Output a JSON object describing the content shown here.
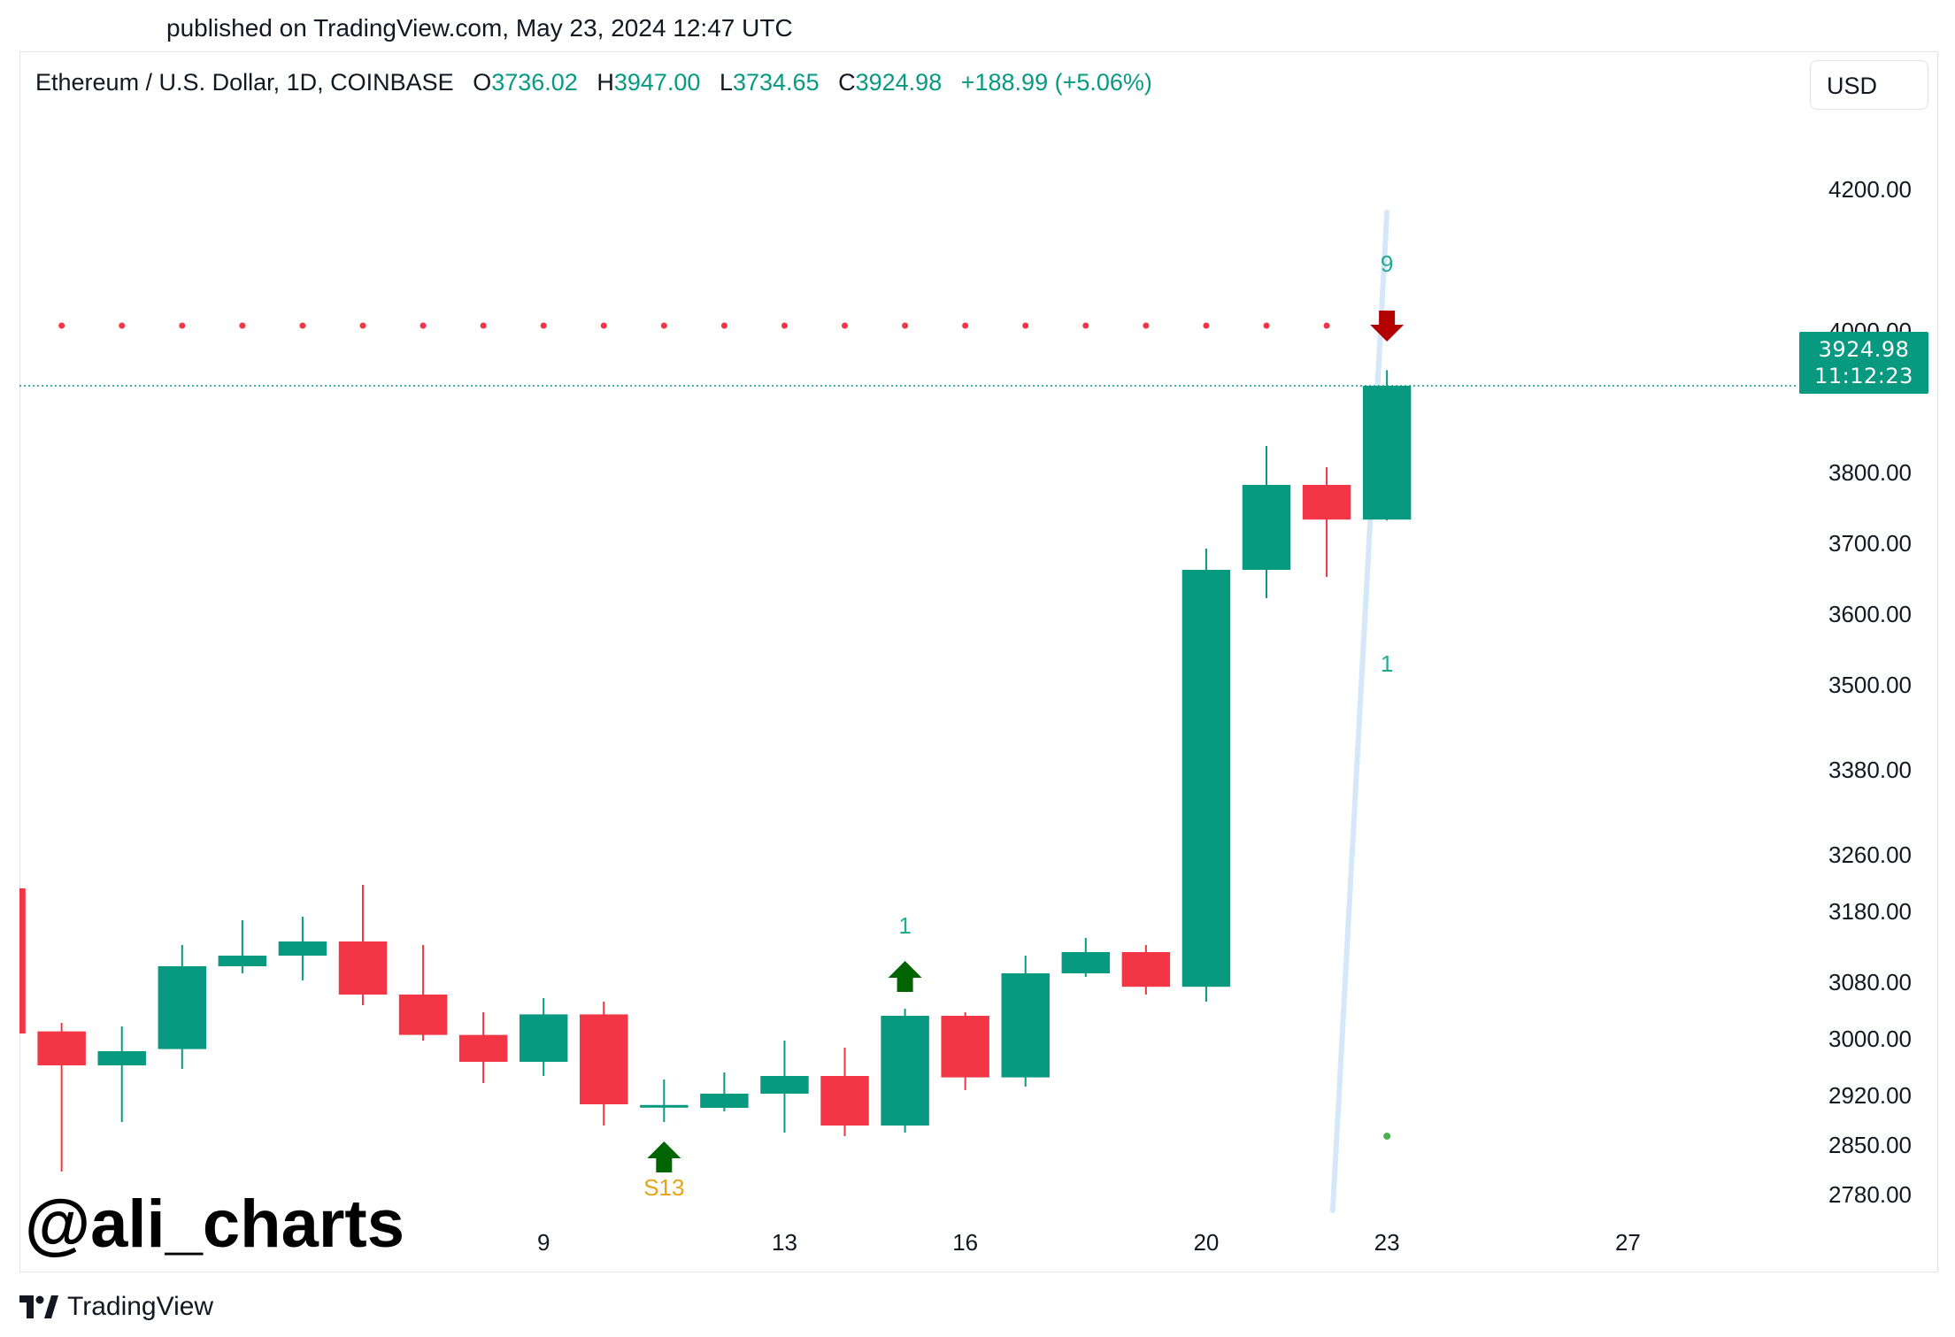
{
  "published": "published on TradingView.com, May 23, 2024 12:47 UTC",
  "header": {
    "symbol": "Ethereum / U.S. Dollar, 1D, COINBASE",
    "o_label": "O",
    "o_value": "3736.02",
    "h_label": "H",
    "h_value": "3947.00",
    "l_label": "L",
    "l_value": "3734.65",
    "c_label": "C",
    "c_value": "3924.98",
    "change": "+188.99 (+5.06%)"
  },
  "currency_button": "USD",
  "price_tag": {
    "price": "3924.98",
    "countdown": "11:12:23"
  },
  "watermark": "@ali_charts",
  "brand": "TradingView",
  "colors": {
    "up": "#089981",
    "down": "#f23645",
    "accent": "#089981",
    "signal_dots": "#f23645",
    "buy_arrow": "#006400",
    "sell_arrow": "#b30000",
    "sequential": "#22ab94",
    "s13": "#e8a317",
    "trendline": "#d4e8fa"
  },
  "chart_data": {
    "type": "candlestick",
    "y_ticks": [
      4200,
      4000,
      3800,
      3700,
      3600,
      3500,
      3380,
      3260,
      3180,
      3080,
      3000,
      2920,
      2850,
      2780
    ],
    "y_tick_labels": [
      "4200.00",
      "4000.00",
      "3800.00",
      "3700.00",
      "3600.00",
      "3500.00",
      "3380.00",
      "3260.00",
      "3180.00",
      "3080.00",
      "3000.00",
      "2920.00",
      "2850.00",
      "2780.00"
    ],
    "ylim": [
      2745,
      4320
    ],
    "x_ticks": [
      {
        "day": 9,
        "label": "9"
      },
      {
        "day": 13,
        "label": "13"
      },
      {
        "day": 16,
        "label": "16"
      },
      {
        "day": 20,
        "label": "20"
      },
      {
        "day": 23,
        "label": "23"
      },
      {
        "day": 27,
        "label": "27"
      }
    ],
    "xlim": [
      0.3,
      29.8
    ],
    "candles": [
      {
        "day": 0,
        "o": 3215,
        "h": 3215,
        "l": 3010,
        "c": 3010
      },
      {
        "day": 1,
        "o": 3013,
        "h": 3025,
        "l": 2815,
        "c": 2965
      },
      {
        "day": 2,
        "o": 2965,
        "h": 3020,
        "l": 2885,
        "c": 2985
      },
      {
        "day": 3,
        "o": 2988,
        "h": 3135,
        "l": 2960,
        "c": 3105
      },
      {
        "day": 4,
        "o": 3105,
        "h": 3170,
        "l": 3095,
        "c": 3120
      },
      {
        "day": 5,
        "o": 3120,
        "h": 3175,
        "l": 3085,
        "c": 3140
      },
      {
        "day": 6,
        "o": 3140,
        "h": 3220,
        "l": 3050,
        "c": 3065
      },
      {
        "day": 7,
        "o": 3065,
        "h": 3135,
        "l": 3000,
        "c": 3008
      },
      {
        "day": 8,
        "o": 3008,
        "h": 3040,
        "l": 2940,
        "c": 2970
      },
      {
        "day": 9,
        "o": 2970,
        "h": 3060,
        "l": 2950,
        "c": 3037
      },
      {
        "day": 10,
        "o": 3037,
        "h": 3055,
        "l": 2880,
        "c": 2910
      },
      {
        "day": 11,
        "o": 2907,
        "h": 2945,
        "l": 2885,
        "c": 2909
      },
      {
        "day": 12,
        "o": 2905,
        "h": 2955,
        "l": 2900,
        "c": 2925
      },
      {
        "day": 13,
        "o": 2925,
        "h": 3000,
        "l": 2870,
        "c": 2950
      },
      {
        "day": 14,
        "o": 2950,
        "h": 2990,
        "l": 2865,
        "c": 2880
      },
      {
        "day": 15,
        "o": 2880,
        "h": 3045,
        "l": 2870,
        "c": 3035
      },
      {
        "day": 16,
        "o": 3035,
        "h": 3040,
        "l": 2930,
        "c": 2948
      },
      {
        "day": 17,
        "o": 2948,
        "h": 3120,
        "l": 2935,
        "c": 3095
      },
      {
        "day": 18,
        "o": 3095,
        "h": 3145,
        "l": 3090,
        "c": 3125
      },
      {
        "day": 19,
        "o": 3125,
        "h": 3135,
        "l": 3065,
        "c": 3076
      },
      {
        "day": 20,
        "o": 3076,
        "h": 3695,
        "l": 3055,
        "c": 3665
      },
      {
        "day": 21,
        "o": 3665,
        "h": 3840,
        "l": 3625,
        "c": 3785
      },
      {
        "day": 22,
        "o": 3785,
        "h": 3810,
        "l": 3655,
        "c": 3736
      },
      {
        "day": 23,
        "o": 3736.02,
        "h": 3947,
        "l": 3734.65,
        "c": 3924.98
      }
    ],
    "last_price": 3924.98,
    "resistance_dots": {
      "level": 4010,
      "from_day": 1,
      "to_day": 22
    },
    "trendline": {
      "from": {
        "day": 22.1,
        "y": 2760
      },
      "to": {
        "day": 23,
        "y": 4170
      }
    },
    "annotations": [
      {
        "type": "sequential",
        "text": "9",
        "day": 23,
        "y": 4095
      },
      {
        "type": "sell-arrow",
        "day": 23,
        "y": 4010
      },
      {
        "type": "sequential",
        "text": "1",
        "day": 23,
        "y": 3530
      },
      {
        "type": "dot",
        "day": 23,
        "y": 2865
      },
      {
        "type": "sequential",
        "text": "1",
        "day": 15,
        "y": 3160
      },
      {
        "type": "buy-arrow",
        "day": 15,
        "y": 3090
      },
      {
        "type": "buy-arrow",
        "day": 11,
        "y": 2835
      },
      {
        "type": "s13",
        "text": "S13",
        "day": 11,
        "y": 2790
      }
    ]
  }
}
